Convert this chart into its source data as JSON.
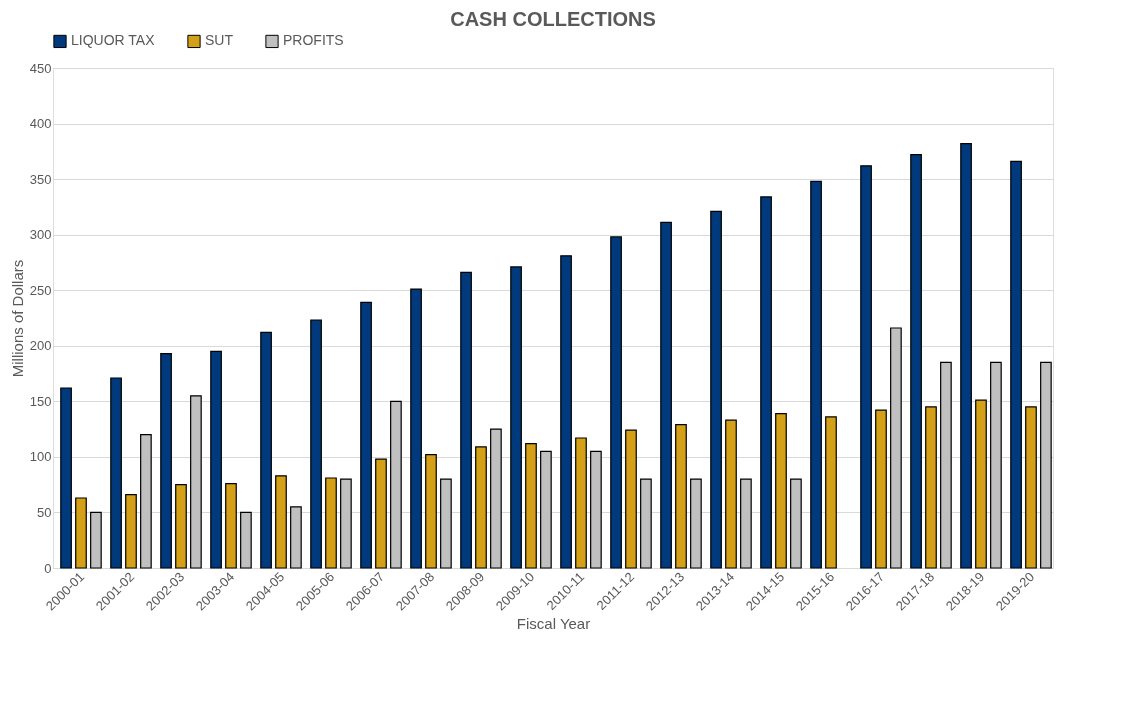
{
  "chart_data": {
    "type": "bar",
    "title": "CASH COLLECTIONS",
    "xlabel": "Fiscal Year",
    "ylabel": "Millions of Dollars",
    "categories": [
      "2000-01",
      "2001-02",
      "2002-03",
      "2003-04",
      "2004-05",
      "2005-06",
      "2006-07",
      "2007-08",
      "2008-09",
      "2009-10",
      "2010-11",
      "2011-12",
      "2012-13",
      "2013-14",
      "2014-15",
      "2015-16",
      "2016-17",
      "2017-18",
      "2018-19",
      "2019-20"
    ],
    "series": [
      {
        "name": "LIQUOR TAX",
        "color": "#003a7d",
        "values": [
          162,
          171,
          193,
          195,
          212,
          223,
          239,
          251,
          266,
          271,
          281,
          298,
          311,
          321,
          334,
          348,
          362,
          372,
          382,
          366
        ]
      },
      {
        "name": "SUT",
        "color": "#d4a017",
        "values": [
          63,
          66,
          75,
          76,
          83,
          81,
          98,
          102,
          109,
          112,
          117,
          124,
          129,
          133,
          139,
          136,
          142,
          145,
          151,
          145
        ]
      },
      {
        "name": "PROFITS",
        "color": "#c0c0c0",
        "values": [
          50,
          120,
          155,
          50,
          55,
          80,
          150,
          80,
          125,
          105,
          105,
          80,
          80,
          80,
          80,
          null,
          216,
          185,
          185,
          185
        ]
      }
    ],
    "ylim": [
      0,
      450
    ],
    "yticks": [
      0,
      50,
      100,
      150,
      200,
      250,
      300,
      350,
      400,
      450
    ],
    "grid": "y",
    "legend": "top"
  }
}
